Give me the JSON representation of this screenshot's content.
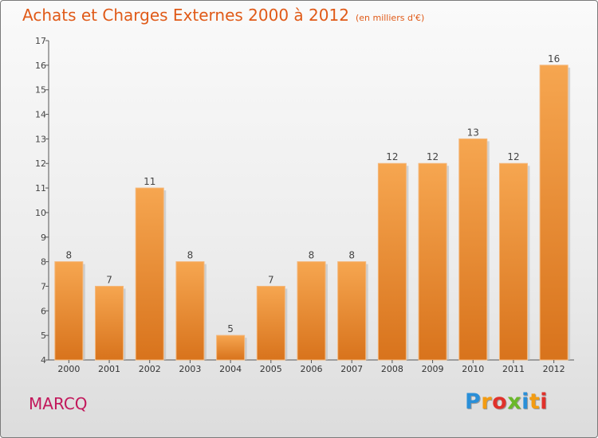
{
  "chart_data": {
    "type": "bar",
    "title": "Achats et Charges Externes 2000 à 2012",
    "subtitle": "(en milliers d'€)",
    "categories": [
      "2000",
      "2001",
      "2002",
      "2003",
      "2004",
      "2005",
      "2006",
      "2007",
      "2008",
      "2009",
      "2010",
      "2011",
      "2012"
    ],
    "values": [
      8,
      7,
      11,
      8,
      5,
      7,
      8,
      8,
      12,
      12,
      13,
      12,
      16
    ],
    "ylim": [
      4,
      17
    ],
    "yticks": [
      4,
      5,
      6,
      7,
      8,
      9,
      10,
      11,
      12,
      13,
      14,
      15,
      16,
      17
    ],
    "xlabel": "",
    "ylabel": "",
    "grid": false,
    "bar_color": "#f0943a"
  },
  "footer": {
    "town": "MARCQ",
    "brand_letters": [
      {
        "ch": "P",
        "color": "#2a8fd8"
      },
      {
        "ch": "r",
        "color": "#f39c12"
      },
      {
        "ch": "o",
        "color": "#e0312b"
      },
      {
        "ch": "x",
        "color": "#6ab82a"
      },
      {
        "ch": "i",
        "color": "#2a8fd8"
      },
      {
        "ch": "t",
        "color": "#f39c12"
      },
      {
        "ch": "i",
        "color": "#e0312b"
      }
    ]
  }
}
